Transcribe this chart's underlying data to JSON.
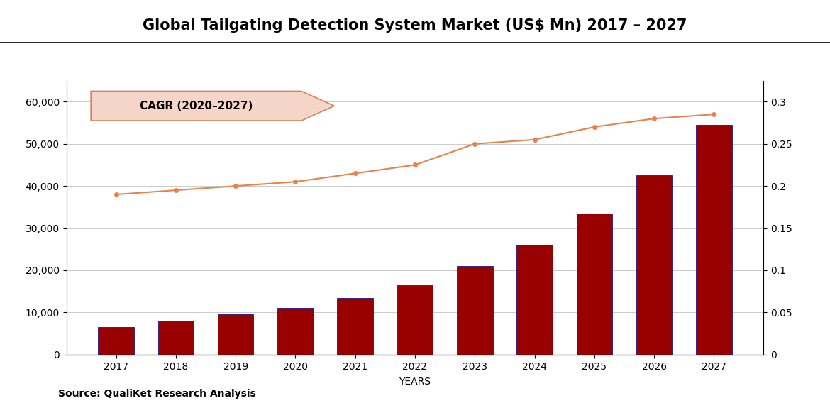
{
  "title": "Global Tailgating Detection System Market (US$ Mn) 2017 – 2027",
  "years": [
    2017,
    2018,
    2019,
    2020,
    2021,
    2022,
    2023,
    2024,
    2025,
    2026,
    2027
  ],
  "bar_values": [
    6500,
    8000,
    9500,
    11000,
    13500,
    16500,
    21000,
    26000,
    33500,
    42500,
    54500
  ],
  "line_values": [
    0.19,
    0.195,
    0.2,
    0.205,
    0.215,
    0.225,
    0.25,
    0.255,
    0.27,
    0.28,
    0.285
  ],
  "bar_color": "#990000",
  "bar_edge_color": "#000080",
  "line_color": "#E8824A",
  "background_color": "#ffffff",
  "grid_color": "#cccccc",
  "ylim_left": [
    0,
    65000
  ],
  "ylim_right": [
    0,
    0.325
  ],
  "yticks_left": [
    0,
    10000,
    20000,
    30000,
    40000,
    50000,
    60000
  ],
  "yticks_right": [
    0,
    0.05,
    0.1,
    0.15,
    0.2,
    0.25,
    0.3
  ],
  "xlabel": "YEARS",
  "source_text": "Source: QualiKet Research Analysis",
  "cagr_text": "CAGR (2020–2027)",
  "arrow_facecolor": "#F5D5C8",
  "arrow_edgecolor": "#D4855A",
  "title_fontsize": 15,
  "axis_fontsize": 10,
  "source_fontsize": 10
}
